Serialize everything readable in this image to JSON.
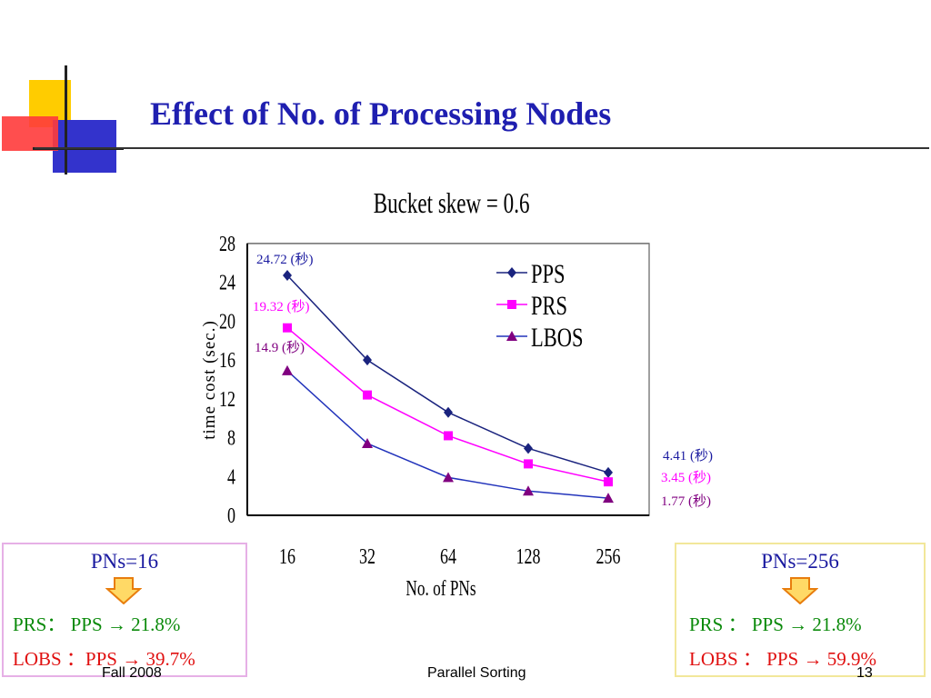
{
  "slide": {
    "title": "Effect of No. of Processing Nodes",
    "footer_left": "Fall 2008",
    "footer_center": "Parallel Sorting",
    "footer_right": "13"
  },
  "chart_data": {
    "type": "line",
    "title": "Bucket skew = 0.6",
    "xlabel": "No. of PNs",
    "ylabel": "time cost (sec.)",
    "categories": [
      "16",
      "32",
      "64",
      "128",
      "256"
    ],
    "ylim": [
      0,
      28
    ],
    "yticks": [
      0,
      4,
      8,
      12,
      16,
      20,
      24,
      28
    ],
    "grid": true,
    "legend_position": "top-right",
    "series": [
      {
        "name": "PPS",
        "color": "#1a237e",
        "marker": "diamond",
        "values": [
          24.72,
          16.0,
          10.6,
          6.9,
          4.41
        ]
      },
      {
        "name": "PRS",
        "color": "#ff00ff",
        "marker": "square",
        "values": [
          19.32,
          12.4,
          8.2,
          5.3,
          3.45
        ]
      },
      {
        "name": "LBOS",
        "color": "#800080",
        "marker": "triangle",
        "values": [
          14.9,
          7.4,
          3.9,
          2.5,
          1.77
        ]
      }
    ],
    "annotations": [
      {
        "text": "24.72 (秒)",
        "color": "#1a1aa0"
      },
      {
        "text": "19.32 (秒)",
        "color": "#ff00ff"
      },
      {
        "text": "14.9 (秒)",
        "color": "#800080"
      },
      {
        "text": "4.41 (秒)",
        "color": "#1a1aa0"
      },
      {
        "text": "3.45 (秒)",
        "color": "#ff00ff"
      },
      {
        "text": "1.77 (秒)",
        "color": "#800080"
      }
    ]
  },
  "boxes": {
    "left": {
      "heading": "PNs=16",
      "line1": "PRS：  PPS    → 21.8%",
      "line2": "LOBS ：PPS → 39.7%"
    },
    "right": {
      "heading": "PNs=256",
      "line1": "PRS  ：  PPS   → 21.8%",
      "line2": "LOBS  ：  PPS → 59.9%"
    }
  },
  "colors": {
    "title": "#1f1fb0",
    "arrow_fill": "#ffd966",
    "arrow_stroke": "#e87d0d"
  }
}
